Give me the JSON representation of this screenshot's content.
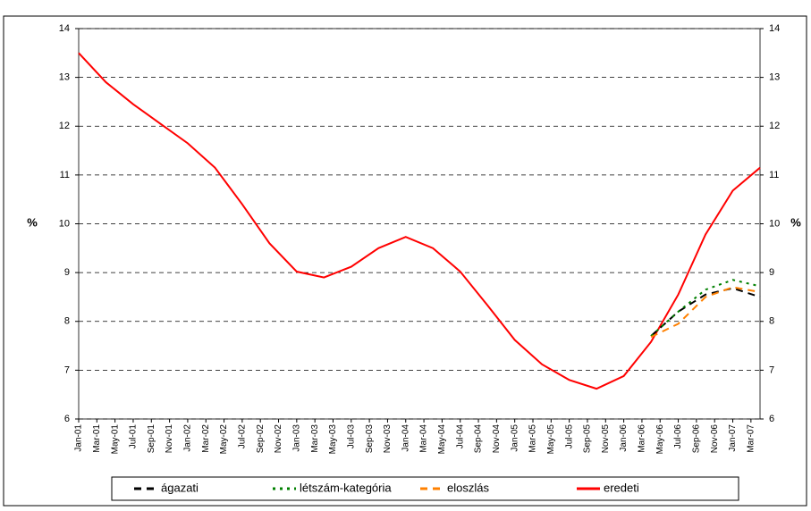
{
  "chart_data": {
    "type": "line",
    "y_label": "%",
    "y2_label": "%",
    "xlim": [
      0,
      75
    ],
    "xticks": [
      {
        "value": 0,
        "label": "Jan-01"
      },
      {
        "value": 2,
        "label": "Mar-01"
      },
      {
        "value": 4,
        "label": "May-01"
      },
      {
        "value": 6,
        "label": "Jul-01"
      },
      {
        "value": 8,
        "label": "Sep-01"
      },
      {
        "value": 10,
        "label": "Nov-01"
      },
      {
        "value": 12,
        "label": "Jan-02"
      },
      {
        "value": 14,
        "label": "Mar-02"
      },
      {
        "value": 16,
        "label": "May-02"
      },
      {
        "value": 18,
        "label": "Jul-02"
      },
      {
        "value": 20,
        "label": "Sep-02"
      },
      {
        "value": 22,
        "label": "Nov-02"
      },
      {
        "value": 24,
        "label": "Jan-03"
      },
      {
        "value": 26,
        "label": "Mar-03"
      },
      {
        "value": 28,
        "label": "May-03"
      },
      {
        "value": 30,
        "label": "Jul-03"
      },
      {
        "value": 32,
        "label": "Sep-03"
      },
      {
        "value": 34,
        "label": "Nov-03"
      },
      {
        "value": 36,
        "label": "Jan-04"
      },
      {
        "value": 38,
        "label": "Mar-04"
      },
      {
        "value": 40,
        "label": "May-04"
      },
      {
        "value": 42,
        "label": "Jul-04"
      },
      {
        "value": 44,
        "label": "Sep-04"
      },
      {
        "value": 46,
        "label": "Nov-04"
      },
      {
        "value": 48,
        "label": "Jan-05"
      },
      {
        "value": 50,
        "label": "Mar-05"
      },
      {
        "value": 52,
        "label": "May-05"
      },
      {
        "value": 54,
        "label": "Jul-05"
      },
      {
        "value": 56,
        "label": "Sep-05"
      },
      {
        "value": 58,
        "label": "Nov-05"
      },
      {
        "value": 60,
        "label": "Jan-06"
      },
      {
        "value": 62,
        "label": "Mar-06"
      },
      {
        "value": 64,
        "label": "May-06"
      },
      {
        "value": 66,
        "label": "Jul-06"
      },
      {
        "value": 68,
        "label": "Sep-06"
      },
      {
        "value": 70,
        "label": "Nov-06"
      },
      {
        "value": 72,
        "label": "Jan-07"
      },
      {
        "value": 74,
        "label": "Mar-07"
      }
    ],
    "ylim": [
      6,
      14
    ],
    "yticks": [
      6,
      7,
      8,
      9,
      10,
      11,
      12,
      13,
      14
    ],
    "y2lim": [
      6,
      14
    ],
    "y2ticks": [
      6,
      7,
      8,
      9,
      10,
      11,
      12,
      13,
      14
    ],
    "grid": true,
    "legend": "bottom",
    "series": [
      {
        "name": "ágazati",
        "color": "#000000",
        "dash": "8,6",
        "x": [
          63,
          66,
          69,
          72,
          75
        ],
        "values": [
          7.7,
          8.2,
          8.55,
          8.68,
          8.5
        ]
      },
      {
        "name": "létszám-kategória",
        "color": "#008000",
        "dash": "3,5",
        "x": [
          63,
          66,
          69,
          72,
          75
        ],
        "values": [
          7.7,
          8.2,
          8.65,
          8.85,
          8.72
        ]
      },
      {
        "name": "eloszlás",
        "color": "#ff8000",
        "dash": "8,6",
        "x": [
          63,
          66,
          69,
          72,
          75
        ],
        "values": [
          7.68,
          7.95,
          8.5,
          8.7,
          8.6
        ]
      },
      {
        "name": "eredeti",
        "color": "#ff0000",
        "dash": "none",
        "x": [
          0,
          3,
          6,
          9,
          12,
          15,
          18,
          21,
          24,
          27,
          30,
          33,
          36,
          39,
          42,
          45,
          48,
          51,
          54,
          57,
          60,
          63,
          66,
          69,
          72,
          75
        ],
        "values": [
          13.5,
          12.9,
          12.45,
          12.05,
          11.65,
          11.15,
          10.4,
          9.6,
          9.02,
          8.9,
          9.12,
          9.5,
          9.73,
          9.5,
          9.02,
          8.33,
          7.62,
          7.12,
          6.8,
          6.62,
          6.88,
          7.58,
          8.55,
          9.78,
          10.68,
          11.15
        ]
      }
    ]
  }
}
